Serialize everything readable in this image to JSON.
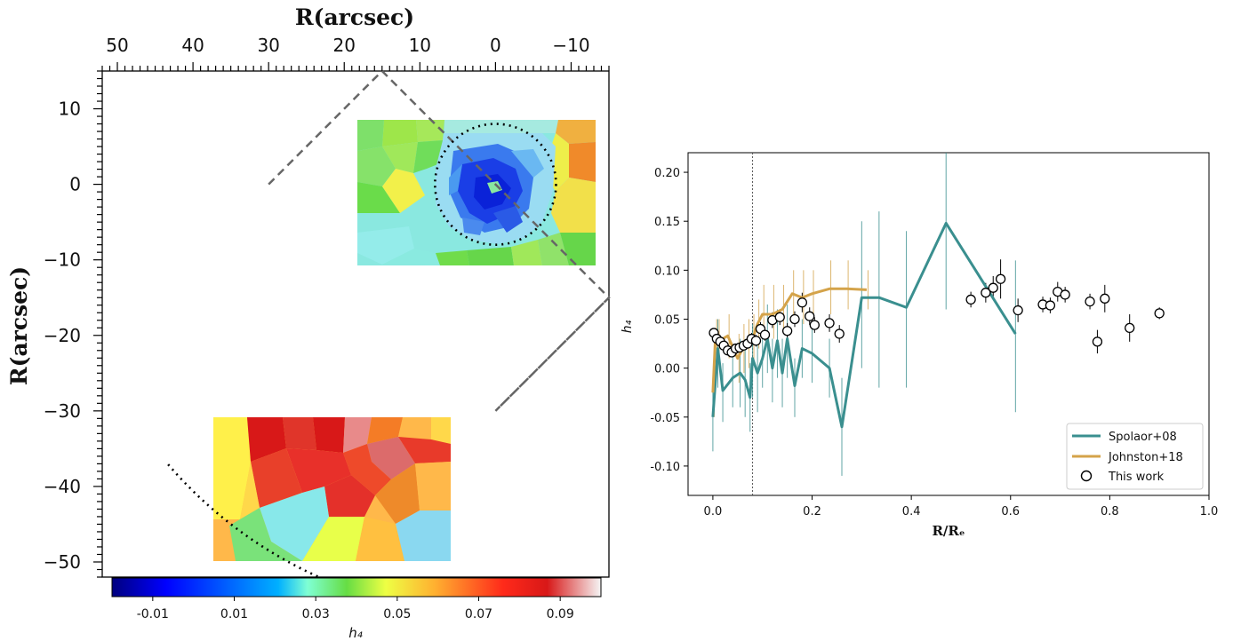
{
  "chart_data": [
    {
      "type": "heatmap",
      "top_axis_label": "R(arcsec)",
      "y_axis_label": "R(arcsec)",
      "top_ticks": [
        "50",
        "40",
        "30",
        "20",
        "10",
        "0",
        "−10"
      ],
      "top_tick_values": [
        50,
        40,
        30,
        20,
        10,
        0,
        -10
      ],
      "left_ticks": [
        "10",
        "0",
        "−10",
        "−20",
        "−30",
        "−40",
        "−50"
      ],
      "left_tick_values": [
        10,
        0,
        -10,
        -20,
        -30,
        -40,
        -50
      ],
      "x_range": [
        52,
        -15
      ],
      "y_range": [
        -52,
        15
      ],
      "colorbar": {
        "label": "h₄",
        "ticks": [
          "-0.01",
          "0.01",
          "0.03",
          "0.05",
          "0.07",
          "0.09"
        ],
        "tick_values": [
          -0.01,
          0.01,
          0.03,
          0.05,
          0.07,
          0.09
        ],
        "range": [
          -0.02,
          0.1
        ],
        "colormap": "jet-like with white top"
      },
      "overlays": {
        "dashed_box_vertices": [
          [
            30,
            0
          ],
          [
            15,
            15
          ],
          [
            -15,
            -15
          ],
          [
            0,
            -30
          ]
        ],
        "dotted_circle": {
          "center": [
            0,
            0
          ],
          "radius": 8
        },
        "dotted_arc": {
          "center": [
            0,
            0
          ],
          "radius": 57
        }
      },
      "fields": [
        {
          "name": "central field",
          "x_range": [
            18,
            -13.5
          ],
          "y_range": [
            -10.7,
            8.5
          ]
        },
        {
          "name": "outer field",
          "x_range": [
            37.5,
            5.8
          ],
          "y_range": [
            -50,
            -30.8
          ]
        }
      ]
    },
    {
      "type": "line",
      "xlabel": "R/Rₑ",
      "ylabel": "h₄",
      "xlim": [
        -0.05,
        1.0
      ],
      "ylim": [
        -0.13,
        0.22
      ],
      "x_ticks": [
        "0.0",
        "0.2",
        "0.4",
        "0.6",
        "0.8",
        "1.0"
      ],
      "x_tick_values": [
        0.0,
        0.2,
        0.4,
        0.6,
        0.8,
        1.0
      ],
      "y_ticks": [
        "0.20",
        "0.15",
        "0.10",
        "0.05",
        "0.00",
        "-0.05",
        "-0.10"
      ],
      "y_tick_values": [
        0.2,
        0.15,
        0.1,
        0.05,
        0.0,
        -0.05,
        -0.1
      ],
      "vline_x": 0.08,
      "legend_position": "lower right",
      "legend": [
        "Spolaor+08",
        "Johnston+18",
        "This work"
      ],
      "colors": {
        "spolaor": "#3a8f8f",
        "johnston": "#d4a34a",
        "points": "#000000"
      },
      "series": [
        {
          "name": "Spolaor+08",
          "x": [
            0.0,
            0.01,
            0.02,
            0.04,
            0.055,
            0.065,
            0.075,
            0.08,
            0.09,
            0.1,
            0.11,
            0.12,
            0.13,
            0.14,
            0.15,
            0.165,
            0.18,
            0.2,
            0.235,
            0.26,
            0.3,
            0.335,
            0.39,
            0.47,
            0.61
          ],
          "y": [
            -0.05,
            0.02,
            -0.023,
            -0.01,
            -0.005,
            -0.012,
            -0.03,
            0.01,
            -0.005,
            0.01,
            0.03,
            0.0,
            0.028,
            -0.005,
            0.03,
            -0.018,
            0.02,
            0.015,
            0.0,
            -0.06,
            0.072,
            0.072,
            0.062,
            0.148,
            0.035
          ],
          "err_low": [
            -0.085,
            -0.02,
            -0.055,
            -0.04,
            -0.04,
            -0.05,
            -0.065,
            -0.03,
            -0.045,
            -0.02,
            -0.005,
            -0.035,
            -0.01,
            -0.04,
            -0.01,
            -0.05,
            -0.01,
            -0.015,
            -0.03,
            -0.11,
            0.0,
            -0.02,
            -0.02,
            0.06,
            -0.045
          ],
          "err_high": [
            -0.01,
            0.05,
            0.005,
            0.02,
            0.03,
            0.02,
            0.005,
            0.045,
            0.03,
            0.045,
            0.065,
            0.03,
            0.06,
            0.03,
            0.065,
            0.01,
            0.05,
            0.045,
            0.03,
            -0.01,
            0.15,
            0.16,
            0.14,
            0.22,
            0.11
          ]
        },
        {
          "name": "Johnston+18",
          "x": [
            0.0,
            0.005,
            0.01,
            0.03,
            0.05,
            0.06,
            0.07,
            0.08,
            0.09,
            0.1,
            0.12,
            0.14,
            0.16,
            0.18,
            0.2,
            0.235,
            0.27,
            0.31
          ],
          "y": [
            -0.025,
            0.03,
            0.027,
            0.033,
            0.01,
            0.02,
            0.025,
            0.03,
            0.045,
            0.055,
            0.055,
            0.06,
            0.076,
            0.072,
            0.076,
            0.081,
            0.081,
            0.08
          ],
          "err_low": [
            -0.05,
            0.01,
            0.005,
            0.01,
            -0.015,
            -0.005,
            0.0,
            0.005,
            0.02,
            0.03,
            0.03,
            0.035,
            0.05,
            0.045,
            0.05,
            0.055,
            0.06,
            0.06
          ],
          "err_high": [
            0.0,
            0.05,
            0.05,
            0.055,
            0.035,
            0.045,
            0.05,
            0.055,
            0.07,
            0.085,
            0.085,
            0.085,
            0.1,
            0.1,
            0.1,
            0.11,
            0.11,
            0.1
          ]
        },
        {
          "name": "This work",
          "x": [
            0.002,
            0.008,
            0.015,
            0.022,
            0.03,
            0.038,
            0.046,
            0.054,
            0.062,
            0.07,
            0.078,
            0.087,
            0.096,
            0.105,
            0.12,
            0.135,
            0.15,
            0.165,
            0.18,
            0.195,
            0.205,
            0.235,
            0.255,
            0.52,
            0.55,
            0.565,
            0.58,
            0.615,
            0.665,
            0.68,
            0.695,
            0.71,
            0.76,
            0.775,
            0.79,
            0.84,
            0.9
          ],
          "y": [
            0.036,
            0.03,
            0.027,
            0.023,
            0.018,
            0.016,
            0.02,
            0.021,
            0.023,
            0.025,
            0.03,
            0.028,
            0.04,
            0.034,
            0.049,
            0.052,
            0.038,
            0.05,
            0.067,
            0.053,
            0.044,
            0.046,
            0.035,
            0.07,
            0.077,
            0.082,
            0.091,
            0.059,
            0.065,
            0.064,
            0.078,
            0.075,
            0.068,
            0.027,
            0.071,
            0.041,
            0.056
          ],
          "err": [
            0.004,
            0.004,
            0.004,
            0.004,
            0.005,
            0.005,
            0.005,
            0.005,
            0.005,
            0.005,
            0.006,
            0.006,
            0.007,
            0.006,
            0.008,
            0.008,
            0.008,
            0.008,
            0.01,
            0.009,
            0.008,
            0.009,
            0.009,
            0.008,
            0.01,
            0.012,
            0.02,
            0.012,
            0.008,
            0.008,
            0.01,
            0.008,
            0.008,
            0.012,
            0.014,
            0.014,
            0.006
          ]
        }
      ]
    }
  ]
}
